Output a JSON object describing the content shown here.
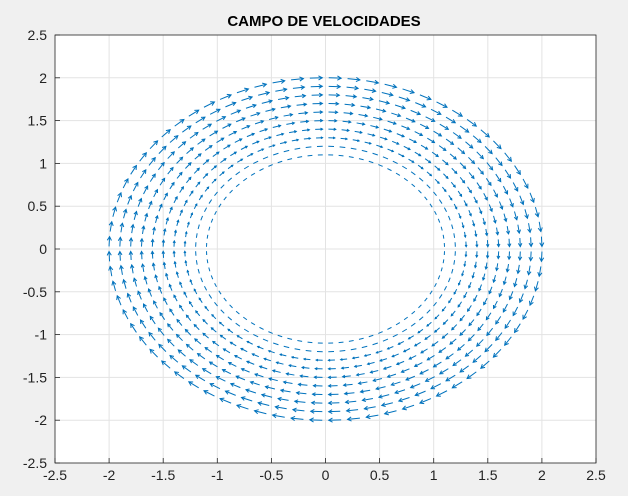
{
  "chart_data": {
    "type": "quiver",
    "title": "CAMPO DE VELOCIDADES",
    "xlabel": "",
    "ylabel": "",
    "xlim": [
      -2.5,
      2.5
    ],
    "ylim": [
      -2.5,
      2.5
    ],
    "xticks": [
      -2.5,
      -2,
      -1.5,
      -1,
      -0.5,
      0,
      0.5,
      1,
      1.5,
      2,
      2.5
    ],
    "yticks": [
      -2.5,
      -2,
      -1.5,
      -1,
      -0.5,
      0,
      0.5,
      1,
      1.5,
      2,
      2.5
    ],
    "xtick_labels": [
      "-2.5",
      "-2",
      "-1.5",
      "-1",
      "-0.5",
      "0",
      "0.5",
      "1",
      "1.5",
      "2",
      "2.5"
    ],
    "ytick_labels": [
      "-2.5",
      "-2",
      "-1.5",
      "-1",
      "-0.5",
      "0",
      "0.5",
      "1",
      "1.5",
      "2",
      "2.5"
    ],
    "grid": true,
    "field": "rotational (clockwise) velocity field on concentric rings",
    "radii": [
      1.1,
      1.2,
      1.3,
      1.4,
      1.5,
      1.6,
      1.7,
      1.8,
      1.9,
      2.0
    ],
    "arrows_per_ring": 72,
    "series_color": "#0072bd",
    "axes_background": "#ffffff",
    "figure_background": "#f0f0f0",
    "grid_color": "#e3e3e3"
  }
}
